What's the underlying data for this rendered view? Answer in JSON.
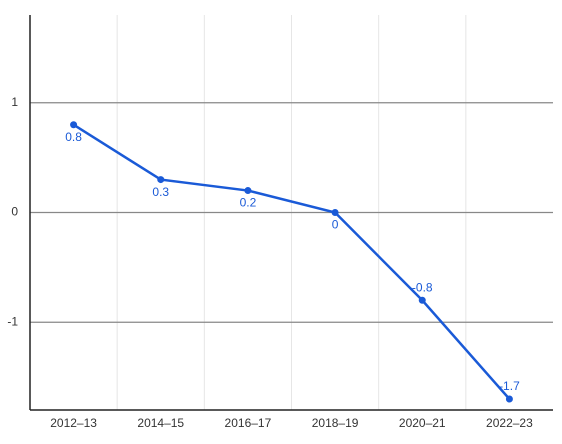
{
  "chart_data": {
    "type": "line",
    "categories": [
      "2012–13",
      "2014–15",
      "2016–17",
      "2018–19",
      "2020–21",
      "2022–23"
    ],
    "series": [
      {
        "color": "#1a5ad7",
        "values": [
          0.8,
          0.3,
          0.2,
          0,
          -0.8,
          -1.7
        ]
      }
    ],
    "ylim": [
      -1.8,
      1.8
    ],
    "yticks": [
      -1,
      0,
      1
    ],
    "grid": true
  }
}
